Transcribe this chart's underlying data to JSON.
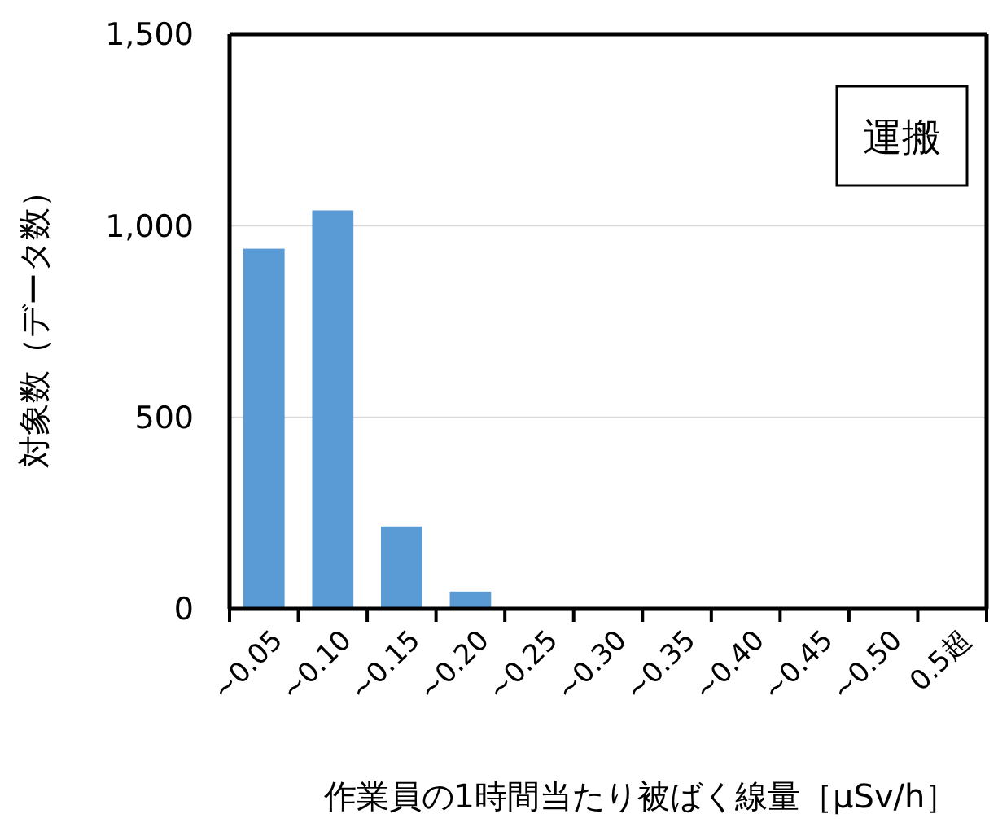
{
  "chart_data": {
    "type": "bar",
    "xlabel": "作業員の1時間当たり被ばく線量［μSv/h］",
    "ylabel": "対象数（データ数）",
    "categories": [
      "~0.05",
      "~0.10",
      "~0.15",
      "~0.20",
      "~0.25",
      "~0.30",
      "~0.35",
      "~0.40",
      "~0.45",
      "~0.50",
      "0.5超"
    ],
    "values": [
      940,
      1040,
      215,
      45,
      3,
      3,
      0,
      0,
      0,
      0,
      0
    ],
    "color": "#5b9bd5",
    "ylim": [
      0,
      1500
    ],
    "yticks": [
      0,
      {
        "value": 500,
        "label": "500"
      },
      {
        "value": 1000,
        "label": "1,000"
      },
      {
        "value": 1500,
        "label": "1,500"
      }
    ],
    "grid": "y",
    "annotations": [
      "運搬"
    ]
  }
}
